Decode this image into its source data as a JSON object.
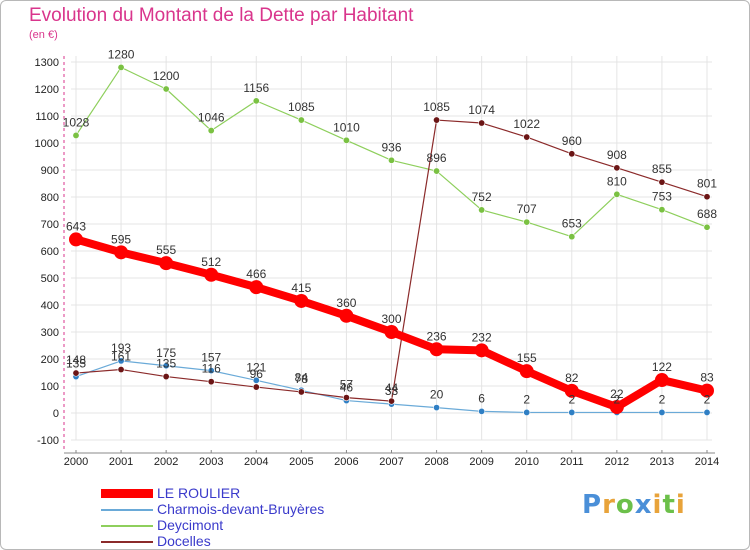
{
  "title": "Evolution du Montant de la Dette par Habitant",
  "unit": "(en €)",
  "logo": {
    "text": "Proxiti",
    "letters": [
      {
        "ch": "P",
        "color": "#4a8fd8"
      },
      {
        "ch": "r",
        "color": "#e8a33a"
      },
      {
        "ch": "o",
        "color": "#6cc04a"
      },
      {
        "ch": "x",
        "color": "#4a8fd8"
      },
      {
        "ch": "i",
        "color": "#e8a33a"
      },
      {
        "ch": "t",
        "color": "#6cc04a"
      },
      {
        "ch": "i",
        "color": "#e8a33a"
      }
    ]
  },
  "chart_data": {
    "type": "line",
    "title": "Evolution du Montant de la Dette par Habitant",
    "ylabel": "(en €)",
    "x": [
      2000,
      2001,
      2002,
      2003,
      2004,
      2005,
      2006,
      2007,
      2008,
      2009,
      2010,
      2011,
      2012,
      2013,
      2014
    ],
    "ylim": [
      -100,
      1300
    ],
    "yticks": [
      -100,
      0,
      100,
      200,
      300,
      400,
      500,
      600,
      700,
      800,
      900,
      1000,
      1100,
      1200,
      1300
    ],
    "grid": true,
    "legend_position": "bottom-left",
    "series": [
      {
        "name": "LE ROULIER",
        "color": "#ff0000",
        "point_color": "#ff0000",
        "thick": true,
        "values": [
          643,
          595,
          555,
          512,
          466,
          415,
          360,
          300,
          236,
          232,
          155,
          82,
          22,
          122,
          83
        ],
        "labels": [
          "643",
          "595",
          "555",
          "512",
          "466",
          "415",
          "360",
          "300",
          "236",
          "232",
          "155",
          "82",
          "22",
          "122",
          "83"
        ]
      },
      {
        "name": "Charmois-devant-Bruyères",
        "color": "#6aaad8",
        "point_color": "#2f7fc4",
        "thick": false,
        "values": [
          135,
          193,
          175,
          157,
          121,
          84,
          46,
          33,
          20,
          6,
          2,
          2,
          2,
          2,
          2
        ],
        "labels": [
          "135",
          "193",
          "175",
          "157",
          "121",
          "84",
          "46",
          "33",
          "20",
          "6",
          "2",
          "2",
          "2",
          "2",
          "2"
        ]
      },
      {
        "name": "Deycimont",
        "color": "#8ecf5c",
        "point_color": "#7ac142",
        "thick": false,
        "values": [
          1028,
          1280,
          1200,
          1046,
          1156,
          1085,
          1010,
          936,
          896,
          752,
          707,
          653,
          810,
          753,
          688
        ],
        "labels": [
          "1028",
          "1280",
          "1200",
          "1046",
          "1156",
          "1085",
          "1010",
          "936",
          "896",
          "752",
          "707",
          "653",
          "810",
          "753",
          "688"
        ]
      },
      {
        "name": "Docelles",
        "color": "#8b2a2a",
        "point_color": "#6b1515",
        "thick": false,
        "values": [
          148,
          161,
          135,
          116,
          96,
          78,
          57,
          44,
          1085,
          1074,
          1022,
          960,
          908,
          855,
          801
        ],
        "labels": [
          "148",
          "161",
          "135",
          "116",
          "96",
          "78",
          "57",
          "44",
          "1085",
          "1074",
          "1022",
          "960",
          "908",
          "855",
          "801"
        ]
      }
    ]
  }
}
